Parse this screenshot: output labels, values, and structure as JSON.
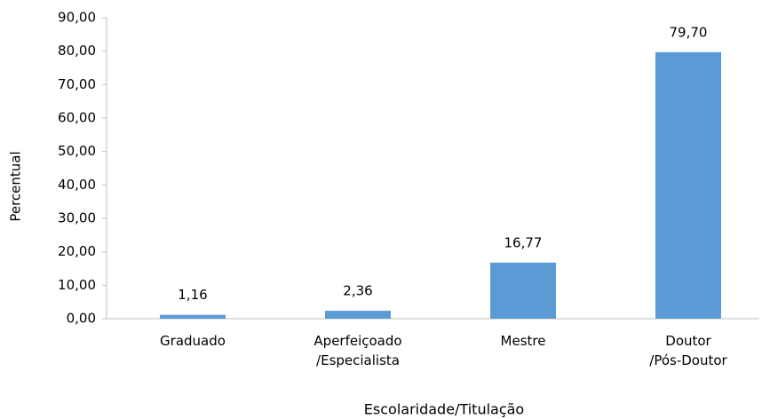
{
  "chart_data": {
    "type": "bar",
    "x_label": "Escolaridade/Titulação",
    "y_label": "Percentual",
    "categories": [
      "Graduado",
      "Aperfeiçoado /Especialista",
      "Mestre",
      "Doutor /Pós-Doutor"
    ],
    "values": [
      1.16,
      2.36,
      16.77,
      79.7
    ],
    "value_labels": [
      "1,16",
      "2,36",
      "16,77",
      "79,70"
    ],
    "color": "#5b9bd5",
    "ylim": [
      0,
      90
    ],
    "yticks": [
      {
        "value": 0,
        "label": "0,00"
      },
      {
        "value": 10,
        "label": "10,00"
      },
      {
        "value": 20,
        "label": "20,00"
      },
      {
        "value": 30,
        "label": "30,00"
      },
      {
        "value": 40,
        "label": "40,00"
      },
      {
        "value": 50,
        "label": "50,00"
      },
      {
        "value": 60,
        "label": "60,00"
      },
      {
        "value": 70,
        "label": "70,00"
      },
      {
        "value": 80,
        "label": "80,00"
      },
      {
        "value": 90,
        "label": "90,00"
      }
    ],
    "grid": false
  }
}
